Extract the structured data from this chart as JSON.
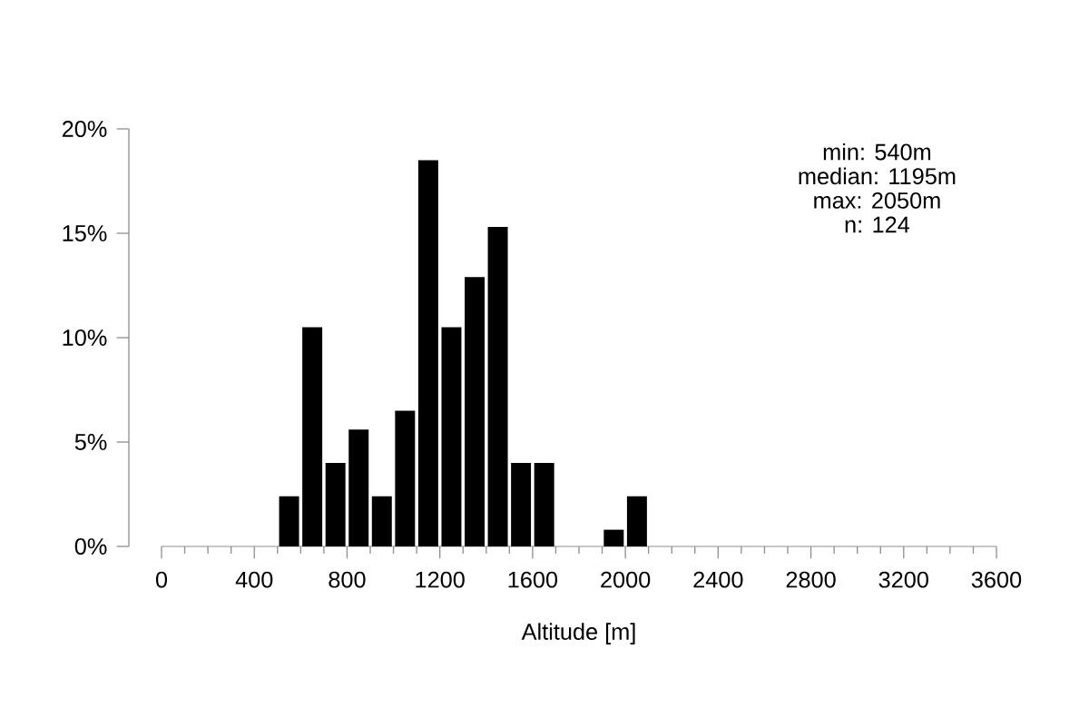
{
  "chart_data": {
    "type": "histogram",
    "xlabel": "Altitude [m]",
    "bins": [
      500,
      600,
      700,
      800,
      900,
      1000,
      1100,
      1200,
      1300,
      1400,
      1500,
      1600,
      1700,
      1800,
      1900,
      2000,
      2100
    ],
    "values": [
      2.4,
      10.5,
      4.0,
      5.6,
      2.4,
      6.5,
      18.5,
      10.5,
      12.9,
      15.3,
      4.0,
      4.0,
      0,
      0,
      0.8,
      2.4
    ],
    "color": "#000000",
    "xlim": [
      0,
      3600
    ],
    "xticks": [
      0,
      400,
      800,
      1200,
      1600,
      2000,
      2400,
      2800,
      3200,
      3600
    ],
    "ylim": [
      0,
      20
    ],
    "yticks": [
      {
        "value": 0,
        "label": "0%"
      },
      {
        "value": 5,
        "label": "5%"
      },
      {
        "value": 10,
        "label": "10%"
      },
      {
        "value": 15,
        "label": "15%"
      },
      {
        "value": 20,
        "label": "20%"
      }
    ],
    "annotations": [
      "min: 540m",
      "median: 1195m",
      "max: 2050m",
      "n: 124"
    ],
    "grid": false
  }
}
